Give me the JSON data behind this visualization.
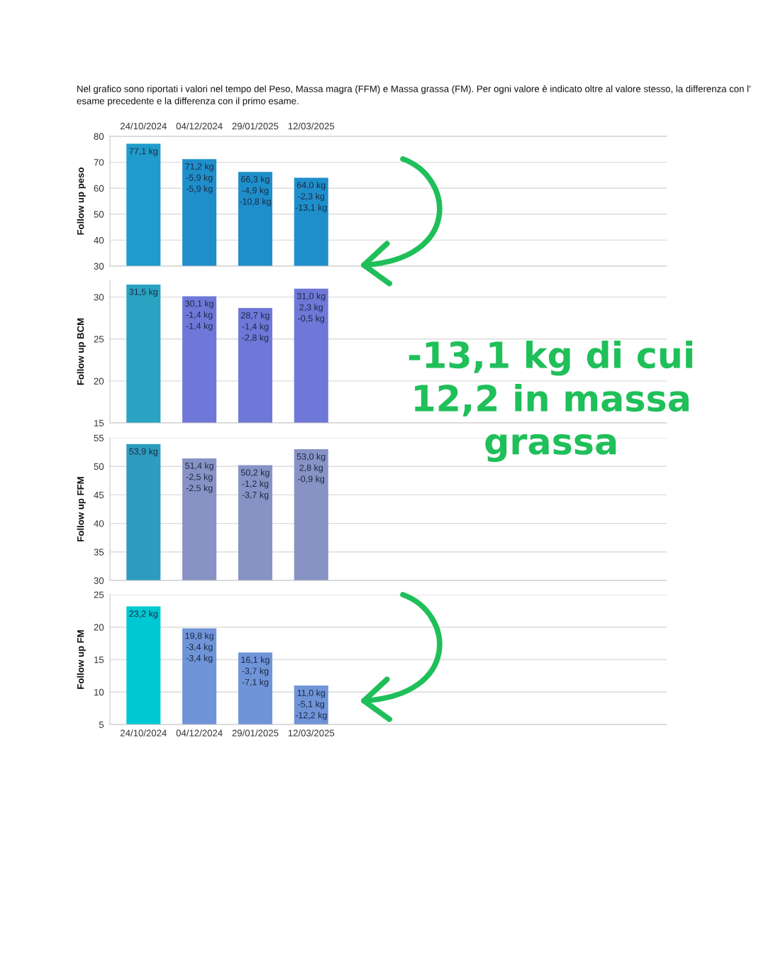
{
  "chart_data": [
    {
      "type": "bar",
      "title": "Nel grafico sono riportati i valori nel tempo del Peso, Massa magra (FFM) e Massa grassa (FM). Per ogni valore è indicato oltre al valore stesso, la differenza con l' esame precedente e la differenza con il primo esame.",
      "annotations": [
        "-13,1 kg di cui 12,2 in massa grassa"
      ],
      "categories": [
        "24/10/2024",
        "04/12/2024",
        "29/01/2025",
        "12/03/2025"
      ],
      "ylabel": "Follow up peso",
      "values": [
        77.1,
        71.2,
        66.3,
        64.0
      ],
      "colors": [
        "#1f9ccb",
        "#1f8fcb",
        "#1f8fcb",
        "#1f8fcb"
      ],
      "value_labels": [
        "77,1 kg",
        "71,2 kg\n-5,9 kg\n-5,9 kg",
        "66,3 kg\n-4,9 kg\n-10,8 kg",
        "64,0 kg\n-2,3 kg\n-13,1 kg"
      ],
      "ylim": [
        30,
        80
      ],
      "yticks": [
        30,
        40,
        50,
        60,
        70,
        80
      ],
      "grid": "y"
    },
    {
      "type": "bar",
      "categories": [
        null,
        null,
        null,
        null
      ],
      "ylabel": "Follow up BCM",
      "values": [
        31.5,
        30.1,
        28.7,
        31.0
      ],
      "colors": [
        "#2aa3c2",
        "#6f78d8",
        "#6f78d8",
        "#6f78d8"
      ],
      "value_labels": [
        "31,5 kg",
        "30,1 kg\n-1,4 kg\n-1,4 kg",
        "28,7 kg\n-1,4 kg\n-2,8 kg",
        "31,0 kg\n2,3 kg\n-0,5 kg"
      ],
      "ylim": [
        15,
        32
      ],
      "yticks": [
        15,
        20,
        25,
        30
      ],
      "grid": "y",
      "tick_labels": "y"
    },
    {
      "type": "bar",
      "categories": [
        null,
        null,
        null,
        null
      ],
      "ylabel": "Follow up FFM",
      "values": [
        53.9,
        51.4,
        50.2,
        53.0
      ],
      "colors": [
        "#2e9cc0",
        "#8793c4",
        "#8793c4",
        "#8793c4"
      ],
      "value_labels": [
        "53,9 kg",
        "51,4 kg\n-2,5 kg\n-2,5 kg",
        "50,2 kg\n-1,2 kg\n-3,7 kg",
        "53,0 kg\n2,8 kg\n-0,9 kg"
      ],
      "ylim": [
        30,
        55
      ],
      "yticks": [
        30,
        35,
        40,
        45,
        50,
        55
      ],
      "grid": "y",
      "tick_labels": "y"
    },
    {
      "type": "bar",
      "categories": [
        "24/10/2024",
        "04/12/2024",
        "29/01/2025",
        "12/03/2025"
      ],
      "ylabel": "Follow up FM",
      "values": [
        23.2,
        19.8,
        16.1,
        11.0
      ],
      "colors": [
        "#00c8d2",
        "#7094d8",
        "#7094d8",
        "#7094d8"
      ],
      "value_labels": [
        "23,2 kg",
        "19,8 kg\n-3,4 kg\n-3,4 kg",
        "16,1 kg\n-3,7 kg\n-7,1 kg",
        "11,0 kg\n-5,1 kg\n-12,2 kg"
      ],
      "ylim": [
        5,
        25
      ],
      "yticks": [
        5,
        10,
        15,
        20,
        25
      ],
      "grid": "y"
    }
  ]
}
